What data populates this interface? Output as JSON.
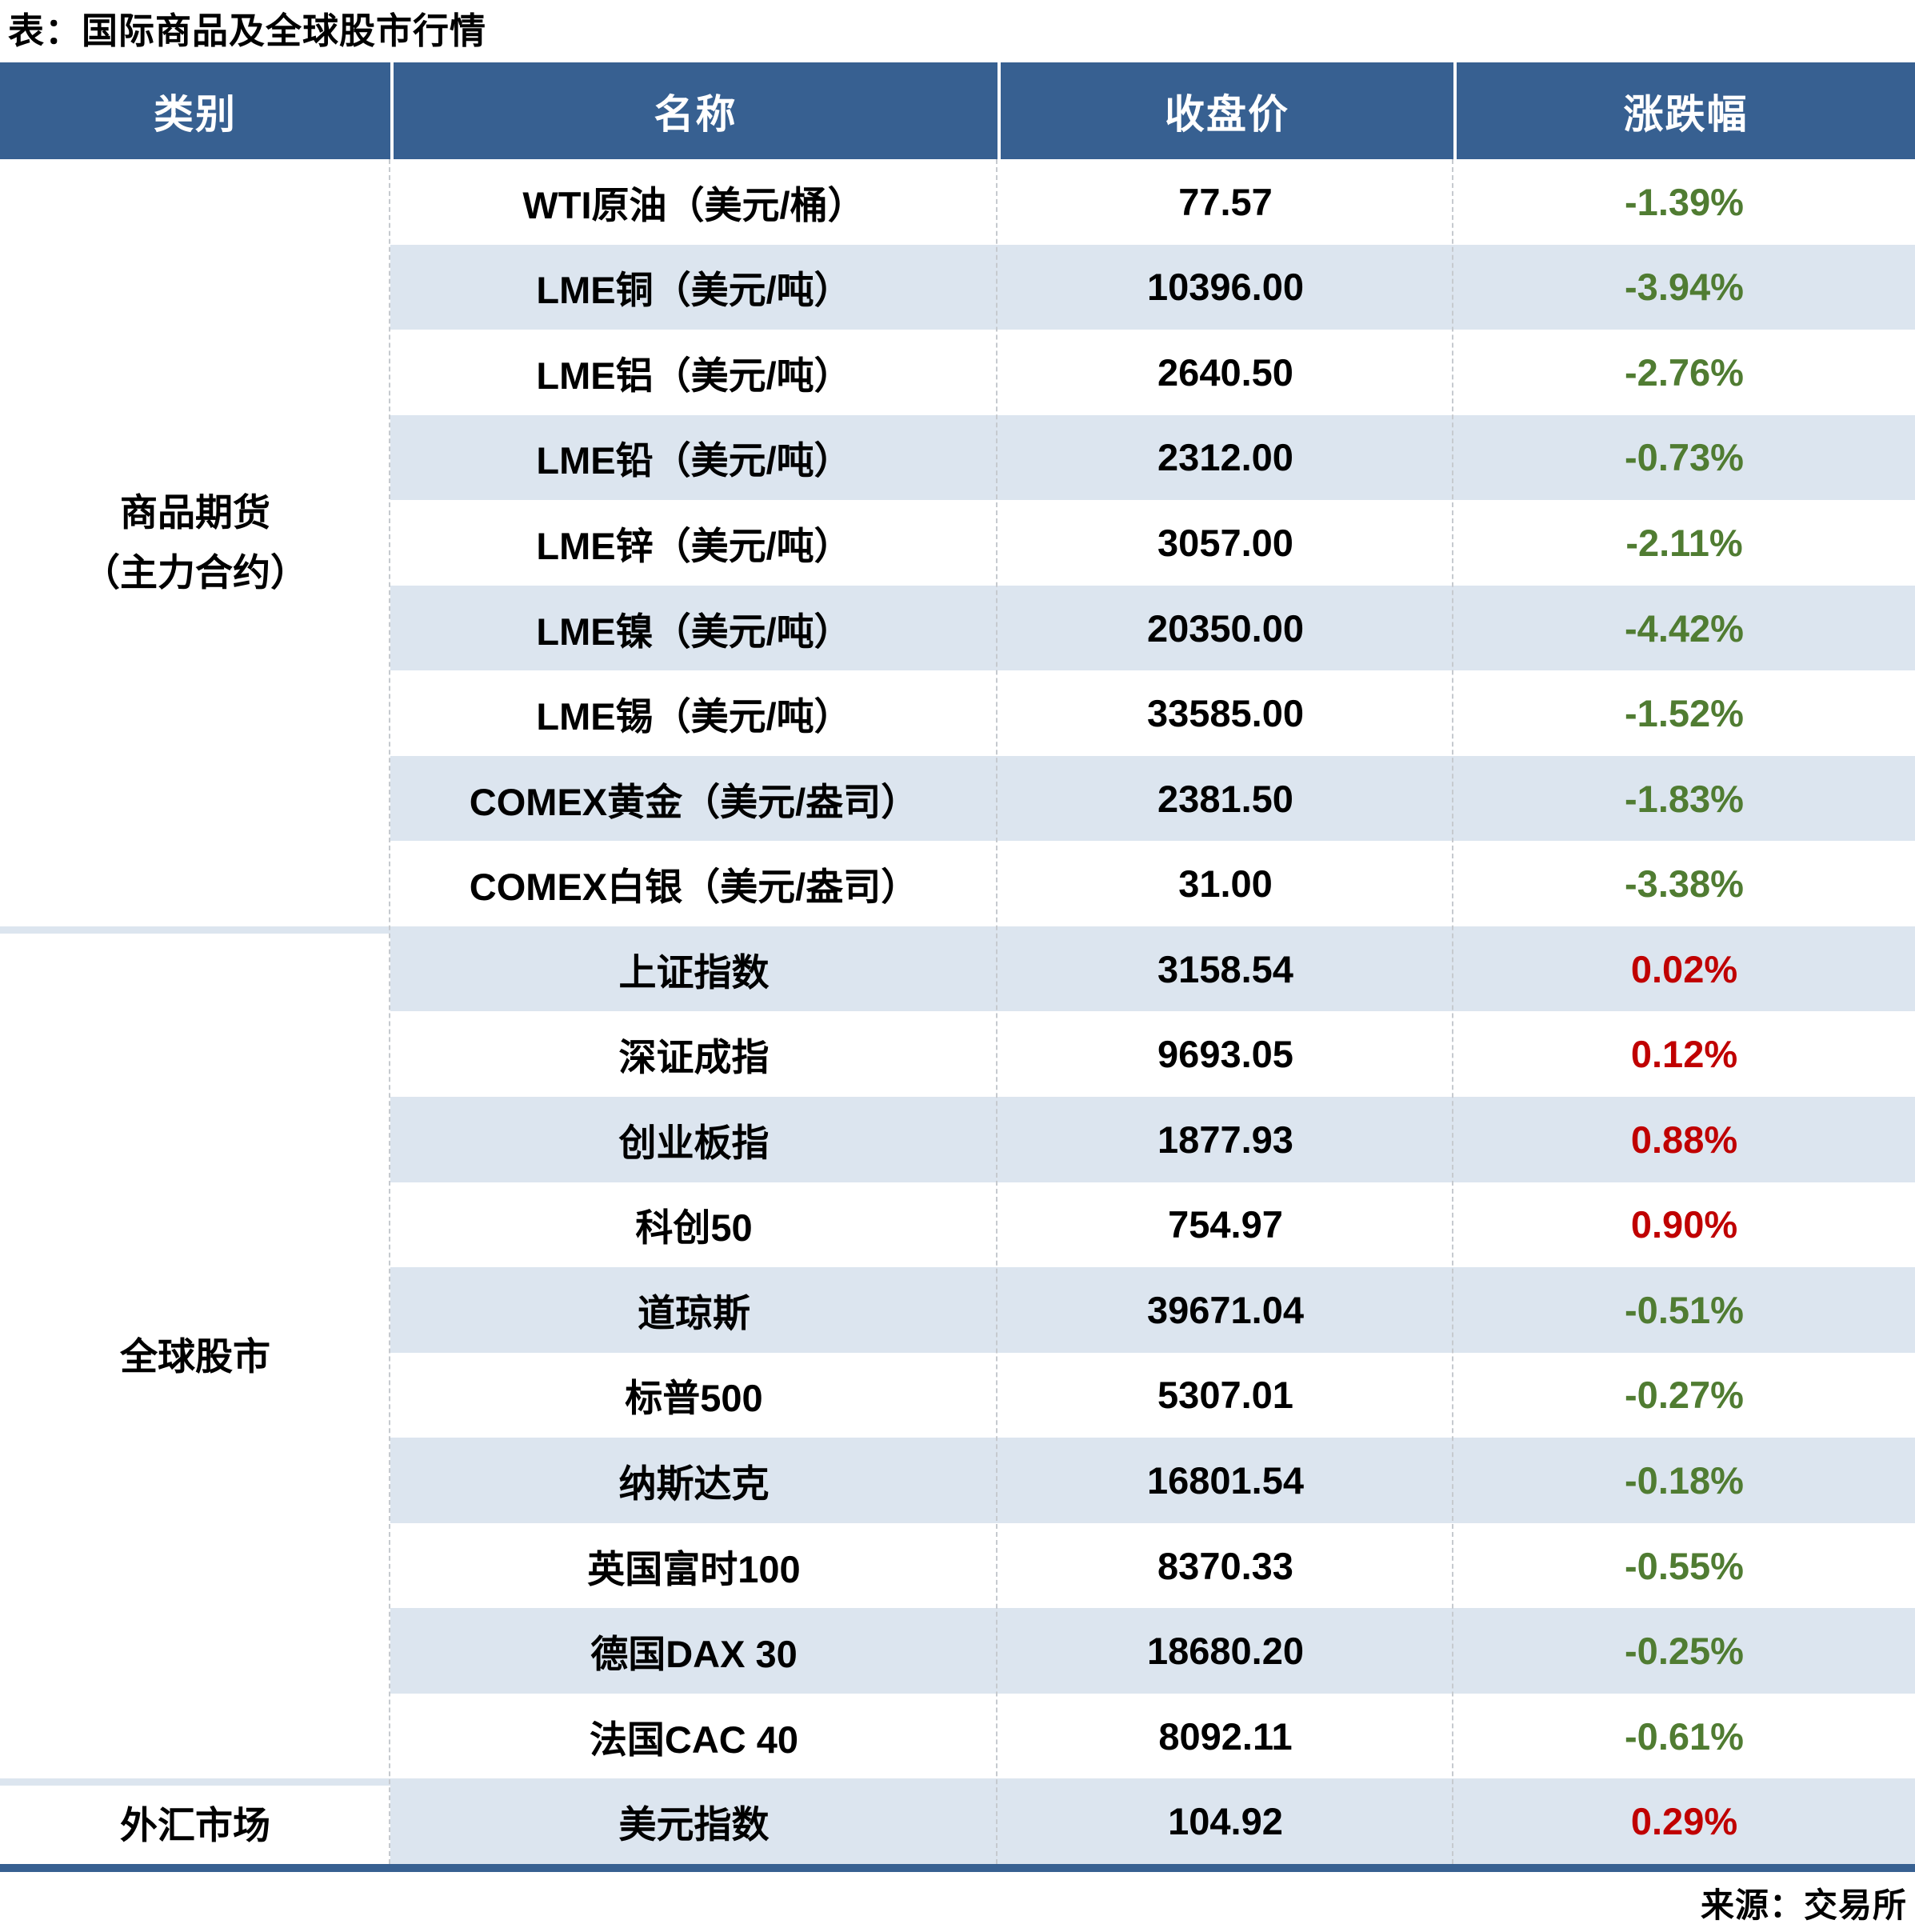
{
  "title": "表：国际商品及全球股市行情",
  "source": "来源：交易所",
  "columns": [
    "类别",
    "名称",
    "收盘价",
    "涨跌幅"
  ],
  "sections": [
    {
      "category": "商品期货（主力合约）",
      "category_display": [
        "商品期货",
        "（主力合约）"
      ],
      "row_count": 9
    },
    {
      "category": "全球股市",
      "category_display": [
        "全球股市"
      ],
      "row_count": 10
    },
    {
      "category": "外汇市场",
      "category_display": [
        "外汇市场"
      ],
      "row_count": 1
    }
  ],
  "colors": {
    "header_bg": "#376091",
    "stripe": "#DCE5EF",
    "up_red": "#C00000",
    "down_green": "#507C32",
    "bottom_bar": "#376091",
    "divider_dash": "#c6cacf"
  },
  "chart_data": {
    "type": "table",
    "title": "表：国际商品及全球股市行情",
    "columns": [
      "类别",
      "名称",
      "收盘价",
      "涨跌幅"
    ],
    "rows": [
      [
        "商品期货（主力合约）",
        "WTI原油（美元/桶）",
        "77.57",
        "-1.39%"
      ],
      [
        "商品期货（主力合约）",
        "LME铜（美元/吨）",
        "10396.00",
        "-3.94%"
      ],
      [
        "商品期货（主力合约）",
        "LME铝（美元/吨）",
        "2640.50",
        "-2.76%"
      ],
      [
        "商品期货（主力合约）",
        "LME铅（美元/吨）",
        "2312.00",
        "-0.73%"
      ],
      [
        "商品期货（主力合约）",
        "LME锌（美元/吨）",
        "3057.00",
        "-2.11%"
      ],
      [
        "商品期货（主力合约）",
        "LME镍（美元/吨）",
        "20350.00",
        "-4.42%"
      ],
      [
        "商品期货（主力合约）",
        "LME锡（美元/吨）",
        "33585.00",
        "-1.52%"
      ],
      [
        "商品期货（主力合约）",
        "COMEX黄金（美元/盎司）",
        "2381.50",
        "-1.83%"
      ],
      [
        "商品期货（主力合约）",
        "COMEX白银（美元/盎司）",
        "31.00",
        "-3.38%"
      ],
      [
        "全球股市",
        "上证指数",
        "3158.54",
        "0.02%"
      ],
      [
        "全球股市",
        "深证成指",
        "9693.05",
        "0.12%"
      ],
      [
        "全球股市",
        "创业板指",
        "1877.93",
        "0.88%"
      ],
      [
        "全球股市",
        "科创50",
        "754.97",
        "0.90%"
      ],
      [
        "全球股市",
        "道琼斯",
        "39671.04",
        "-0.51%"
      ],
      [
        "全球股市",
        "标普500",
        "5307.01",
        "-0.27%"
      ],
      [
        "全球股市",
        "纳斯达克",
        "16801.54",
        "-0.18%"
      ],
      [
        "全球股市",
        "英国富时100",
        "8370.33",
        "-0.55%"
      ],
      [
        "全球股市",
        "德国DAX 30",
        "18680.20",
        "-0.25%"
      ],
      [
        "全球股市",
        "法国CAC 40",
        "8092.11",
        "-0.61%"
      ],
      [
        "外汇市场",
        "美元指数",
        "104.92",
        "0.29%"
      ]
    ]
  }
}
